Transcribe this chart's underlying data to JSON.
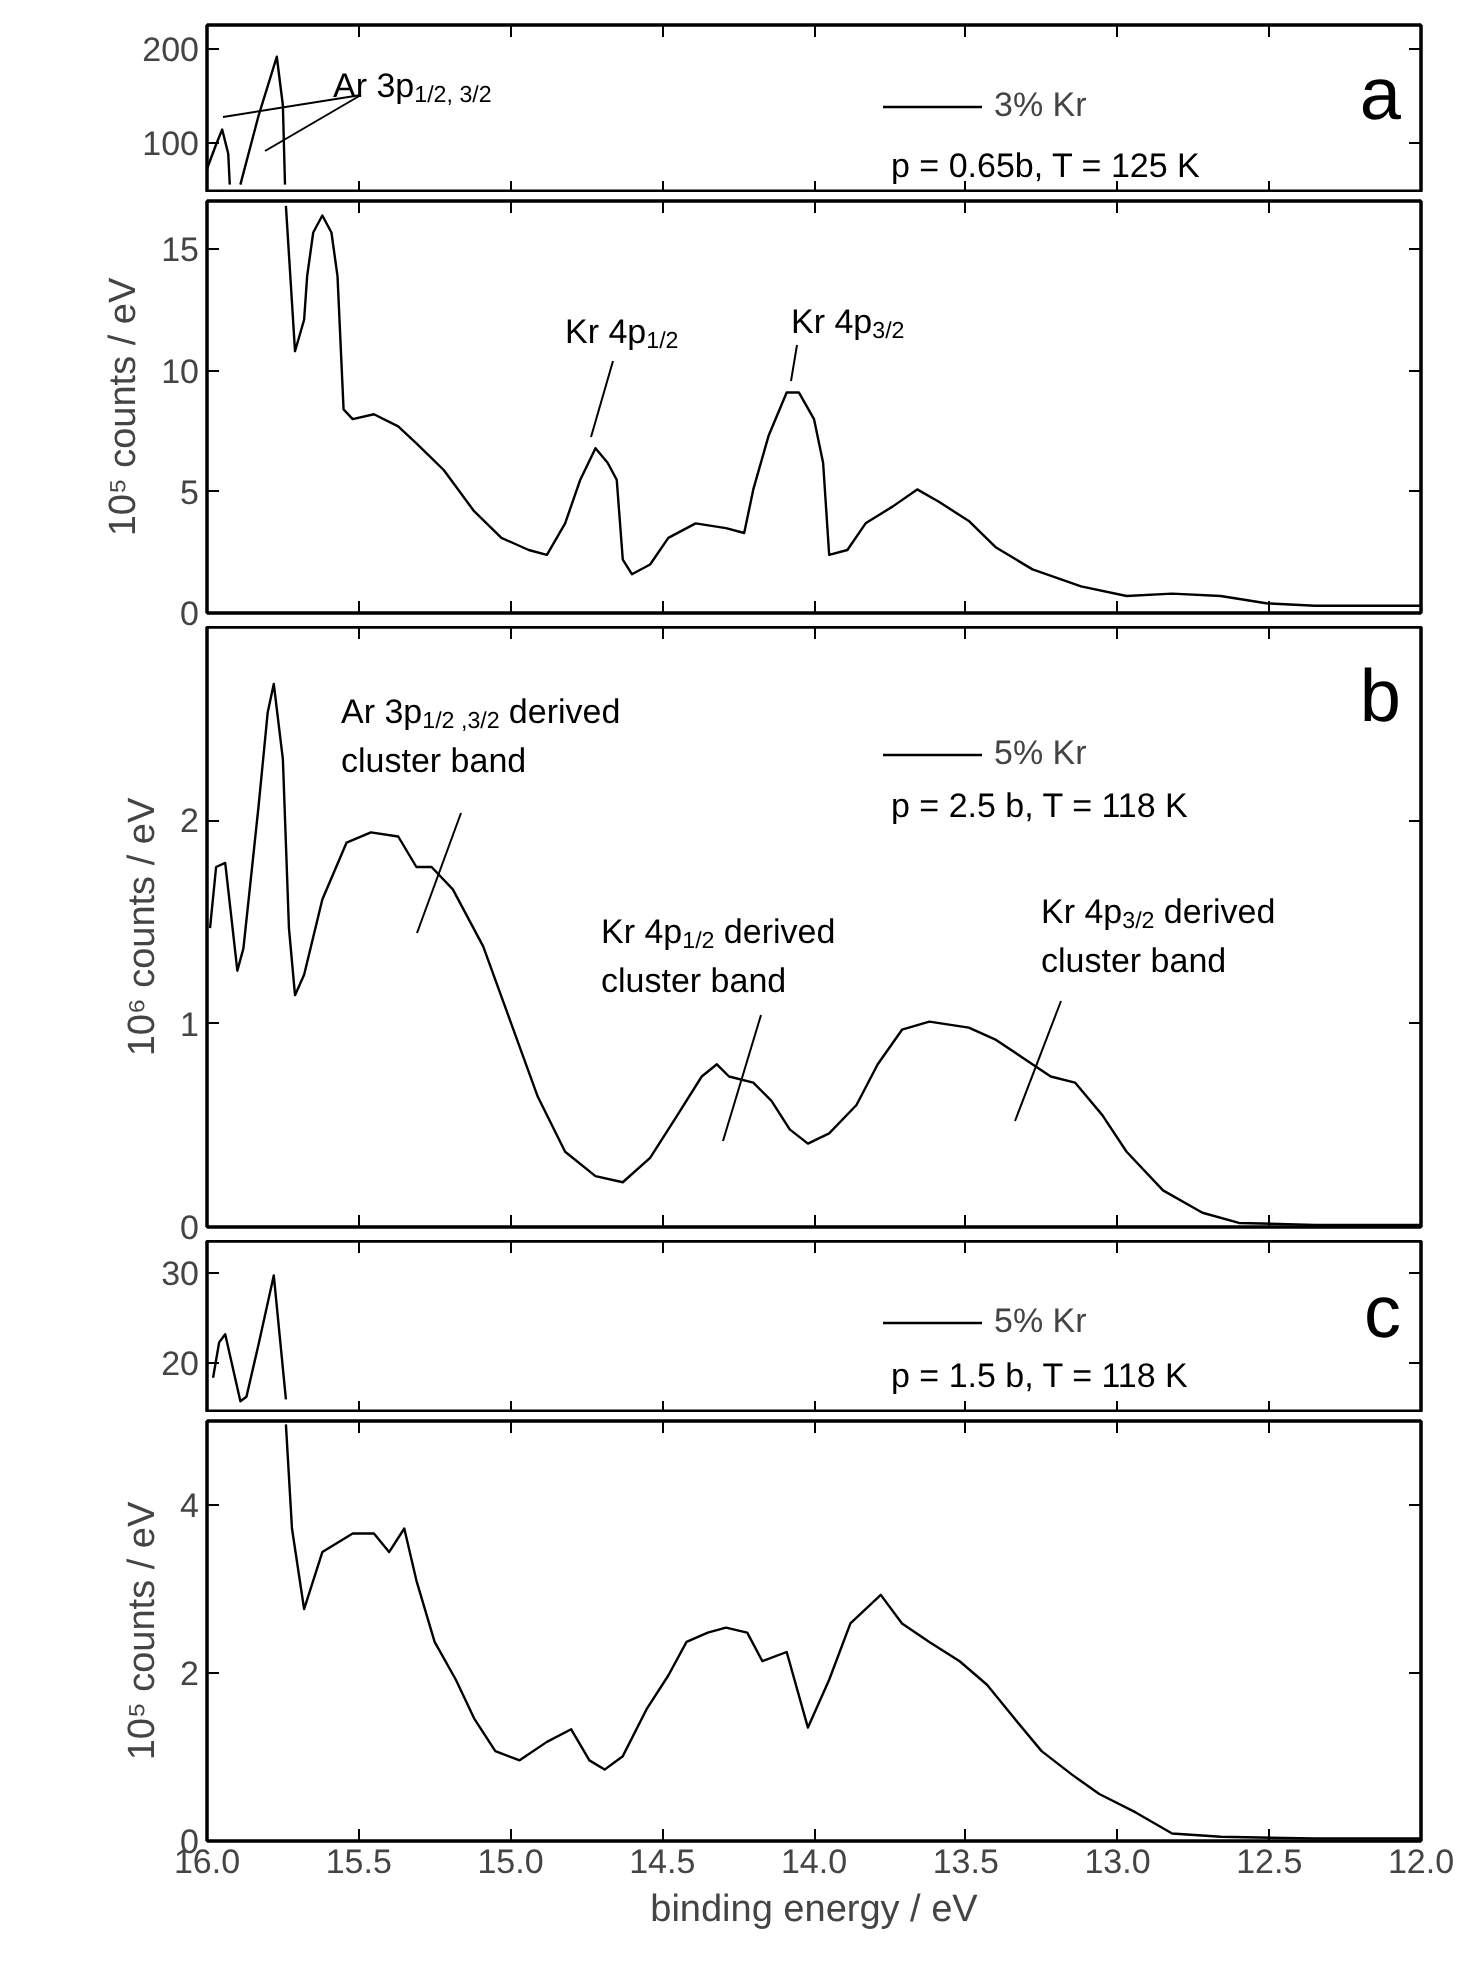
{
  "chart_data": [
    {
      "type": "line",
      "xlim": [
        16.0,
        12.0
      ],
      "ylim": [
        46,
        226
      ],
      "yticks": [
        100,
        200
      ],
      "xticks": [
        16,
        15.5,
        15,
        14.5,
        14,
        13.5,
        13,
        12.5,
        12
      ],
      "tick_labels": "y",
      "legend": "top right",
      "grid": false,
      "series": [
        {
          "name": "3% Kr",
          "color": "#000000",
          "x": [
            16.0,
            15.97,
            15.95,
            15.93,
            15.925
          ],
          "values": [
            72,
            98,
            114,
            88,
            55
          ]
        },
        {
          "color": "#000000",
          "x": [
            15.89,
            15.83,
            15.77,
            15.75,
            15.743
          ],
          "values": [
            55,
            129,
            192,
            140,
            55
          ]
        }
      ],
      "annotations": [
        "Ar 3p$_{1/2, 3/2}$",
        "p = 0.65b, T = 125 K",
        "a"
      ]
    },
    {
      "type": "line",
      "xlim": [
        16.0,
        12.0
      ],
      "ylim": [
        0,
        17
      ],
      "yticks": [
        0,
        5,
        10,
        15
      ],
      "xticks": [
        16,
        15.5,
        15,
        14.5,
        14,
        13.5,
        13,
        12.5,
        12
      ],
      "tick_labels": "y",
      "grid": false,
      "ylabel": "10⁵ counts / eV",
      "x": [
        15.74,
        15.71,
        15.68,
        15.67,
        15.65,
        15.62,
        15.59,
        15.57,
        15.55,
        15.52,
        15.45,
        15.37,
        15.31,
        15.22,
        15.12,
        15.03,
        14.94,
        14.88,
        14.82,
        14.77,
        14.72,
        14.68,
        14.65,
        14.63,
        14.6,
        14.54,
        14.48,
        14.39,
        14.29,
        14.23,
        14.2,
        14.15,
        14.09,
        14.05,
        14.0,
        13.97,
        13.95,
        13.89,
        13.83,
        13.74,
        13.66,
        13.59,
        13.49,
        13.4,
        13.28,
        13.12,
        12.97,
        12.82,
        12.66,
        12.51,
        12.35,
        12.0
      ],
      "series": [
        {
          "color": "#000000",
          "values": [
            16.8,
            10.8,
            12.1,
            13.9,
            15.7,
            16.4,
            15.7,
            13.9,
            8.4,
            8.0,
            8.2,
            7.7,
            7.0,
            5.9,
            4.2,
            3.1,
            2.6,
            2.4,
            3.7,
            5.5,
            6.8,
            6.2,
            5.5,
            2.2,
            1.6,
            2.0,
            3.1,
            3.7,
            3.5,
            3.3,
            5.1,
            7.3,
            9.1,
            9.1,
            8.0,
            6.2,
            2.4,
            2.6,
            3.7,
            4.4,
            5.1,
            4.6,
            3.8,
            2.7,
            1.8,
            1.1,
            0.7,
            0.8,
            0.7,
            0.4,
            0.3,
            0.3
          ]
        }
      ],
      "annotations": [
        "Kr 4p$_{1/2}$",
        "Kr 4p$_{3/2}$"
      ]
    },
    {
      "type": "line",
      "xlim": [
        16.0,
        12.0
      ],
      "ylim": [
        0,
        2.95
      ],
      "yticks": [
        0,
        1,
        2
      ],
      "xticks": [
        16,
        15.5,
        15,
        14.5,
        14,
        13.5,
        13,
        12.5,
        12
      ],
      "tick_labels": "y",
      "legend": "top right",
      "grid": false,
      "ylabel": "10⁶ counts / eV",
      "x": [
        15.99,
        15.97,
        15.94,
        15.9,
        15.88,
        15.83,
        15.8,
        15.78,
        15.75,
        15.73,
        15.71,
        15.68,
        15.62,
        15.54,
        15.46,
        15.37,
        15.31,
        15.26,
        15.19,
        15.09,
        15.0,
        14.91,
        14.82,
        14.72,
        14.63,
        14.54,
        14.45,
        14.37,
        14.32,
        14.28,
        14.2,
        14.14,
        14.08,
        14.02,
        13.95,
        13.86,
        13.79,
        13.71,
        13.62,
        13.49,
        13.4,
        13.31,
        13.22,
        13.14,
        13.05,
        12.97,
        12.85,
        12.72,
        12.6,
        12.35,
        12.0
      ],
      "series": [
        {
          "name": "5% Kr",
          "color": "#000000",
          "values": [
            1.47,
            1.77,
            1.79,
            1.26,
            1.37,
            2.07,
            2.53,
            2.67,
            2.3,
            1.47,
            1.14,
            1.24,
            1.61,
            1.89,
            1.94,
            1.92,
            1.77,
            1.77,
            1.66,
            1.38,
            1.01,
            0.64,
            0.37,
            0.25,
            0.22,
            0.34,
            0.55,
            0.74,
            0.8,
            0.74,
            0.71,
            0.62,
            0.48,
            0.41,
            0.46,
            0.6,
            0.8,
            0.97,
            1.01,
            0.98,
            0.92,
            0.83,
            0.74,
            0.71,
            0.55,
            0.37,
            0.18,
            0.07,
            0.02,
            0.01,
            0.01
          ]
        }
      ],
      "annotations": [
        "Ar 3p$_{1/2 ,3/2}$ derived\ncluster band",
        "Kr 4p$_{1/2}$ derived\ncluster band",
        "Kr 4p$_{3/2}$ derived\ncluster band",
        "p = 2.5 b, T = 118 K",
        "b"
      ]
    },
    {
      "type": "line",
      "xlim": [
        16.0,
        12.0
      ],
      "ylim": [
        14.5,
        33.5
      ],
      "yticks": [
        20,
        30
      ],
      "xticks": [
        16,
        15.5,
        15,
        14.5,
        14,
        13.5,
        13,
        12.5,
        12
      ],
      "tick_labels": "y",
      "legend": "top right",
      "grid": false,
      "x": [
        15.98,
        15.96,
        15.94,
        15.89,
        15.87,
        15.83,
        15.78,
        15.74
      ],
      "series": [
        {
          "name": "5% Kr",
          "color": "#000000",
          "values": [
            18.4,
            22.3,
            23.2,
            15.8,
            16.3,
            22.1,
            29.7,
            16.0
          ]
        }
      ],
      "annotations": [
        "p = 1.5 b, T = 118 K",
        "c"
      ]
    },
    {
      "type": "line",
      "xlim": [
        16.0,
        12.0
      ],
      "ylim": [
        0,
        5.0
      ],
      "yticks": [
        0,
        2,
        4
      ],
      "xticks": [
        {
          "value": 16,
          "label": "16.0"
        },
        {
          "value": 15.5,
          "label": "15.5"
        },
        {
          "value": 15,
          "label": "15.0"
        },
        {
          "value": 14.5,
          "label": "14.5"
        },
        {
          "value": 14,
          "label": "14.0"
        },
        {
          "value": 13.5,
          "label": "13.5"
        },
        {
          "value": 13,
          "label": "13.0"
        },
        {
          "value": 12.5,
          "label": "12.5"
        },
        {
          "value": 12,
          "label": "12.0"
        }
      ],
      "grid": false,
      "xlabel": "binding energy / eV",
      "ylabel": "10⁵ counts / eV",
      "x": [
        15.74,
        15.72,
        15.68,
        15.62,
        15.57,
        15.52,
        15.45,
        15.4,
        15.35,
        15.31,
        15.25,
        15.18,
        15.12,
        15.05,
        14.97,
        14.88,
        14.8,
        14.74,
        14.69,
        14.63,
        14.55,
        14.48,
        14.42,
        14.35,
        14.29,
        14.22,
        14.17,
        14.09,
        14.02,
        13.95,
        13.88,
        13.78,
        13.71,
        13.62,
        13.52,
        13.43,
        13.34,
        13.25,
        13.15,
        13.06,
        12.94,
        12.82,
        12.66,
        12.35,
        12.0
      ],
      "series": [
        {
          "color": "#000000",
          "values": [
            4.96,
            3.72,
            2.76,
            3.44,
            3.55,
            3.66,
            3.66,
            3.44,
            3.72,
            3.1,
            2.37,
            1.92,
            1.46,
            1.07,
            0.96,
            1.18,
            1.33,
            0.96,
            0.85,
            1.01,
            1.58,
            1.97,
            2.37,
            2.48,
            2.54,
            2.48,
            2.14,
            2.25,
            1.35,
            1.92,
            2.59,
            2.93,
            2.59,
            2.37,
            2.14,
            1.86,
            1.46,
            1.07,
            0.79,
            0.56,
            0.34,
            0.09,
            0.05,
            0.03,
            0.03
          ]
        }
      ]
    }
  ]
}
